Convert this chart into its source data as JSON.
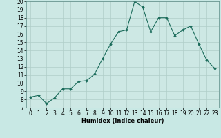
{
  "x": [
    0,
    1,
    2,
    3,
    4,
    5,
    6,
    7,
    8,
    9,
    10,
    11,
    12,
    13,
    14,
    15,
    16,
    17,
    18,
    19,
    20,
    21,
    22,
    23
  ],
  "y": [
    8.3,
    8.5,
    7.5,
    8.2,
    9.3,
    9.3,
    10.2,
    10.3,
    11.1,
    13.0,
    14.8,
    16.3,
    16.5,
    20.0,
    19.3,
    16.3,
    18.0,
    18.0,
    15.8,
    16.5,
    17.0,
    14.8,
    12.8,
    11.8
  ],
  "xlabel": "Humidex (Indice chaleur)",
  "ylim": [
    7,
    20
  ],
  "xlim_min": -0.5,
  "xlim_max": 23.5,
  "yticks": [
    7,
    8,
    9,
    10,
    11,
    12,
    13,
    14,
    15,
    16,
    17,
    18,
    19,
    20
  ],
  "xticks": [
    0,
    1,
    2,
    3,
    4,
    5,
    6,
    7,
    8,
    9,
    10,
    11,
    12,
    13,
    14,
    15,
    16,
    17,
    18,
    19,
    20,
    21,
    22,
    23
  ],
  "line_color": "#1a6b5a",
  "marker": "D",
  "marker_size": 1.8,
  "background_color": "#c8e8e4",
  "grid_color": "#b0cec8",
  "axes_bg": "#cde8e4",
  "spine_color": "#5a8a84",
  "xlabel_fontsize": 6.0,
  "tick_fontsize": 5.5
}
